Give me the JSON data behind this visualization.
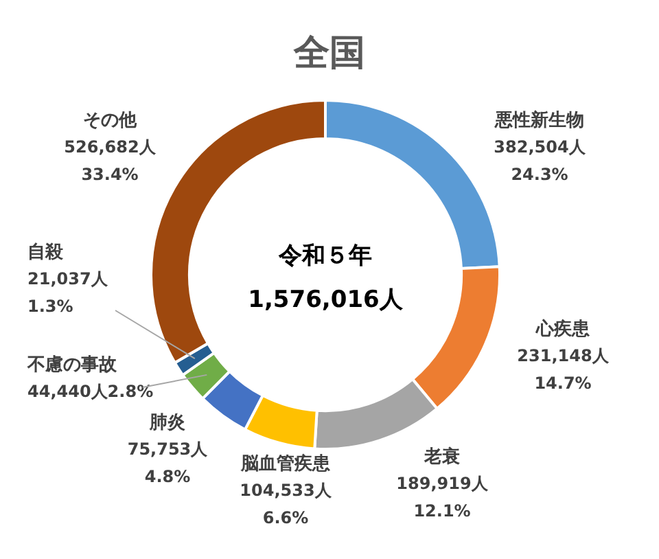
{
  "chart_data": {
    "type": "donut",
    "title": "全国",
    "categories": [
      "悪性新生物",
      "心疾患",
      "老衰",
      "脳血管疾患",
      "肺炎",
      "不慮の事故",
      "自殺",
      "その他"
    ],
    "values": [
      382504,
      231148,
      189919,
      104533,
      75753,
      44440,
      21037,
      526682
    ],
    "colors": [
      "#5b9bd5",
      "#ed7d31",
      "#a5a5a5",
      "#ffc000",
      "#4472c4",
      "#70ad47",
      "#255e91",
      "#9e480e"
    ],
    "value_labels": [
      "382,504人\n24.3%",
      "231,148人\n14.7%",
      "189,919人\n12.1%",
      "104,533人\n6.6%",
      "75,753人\n4.8%",
      "44,440人2.8%",
      "21,037人\n1.3%",
      "526,682人\n33.4%"
    ],
    "annotations": [
      "令和５年",
      "1,576,016人"
    ],
    "legend": false
  }
}
